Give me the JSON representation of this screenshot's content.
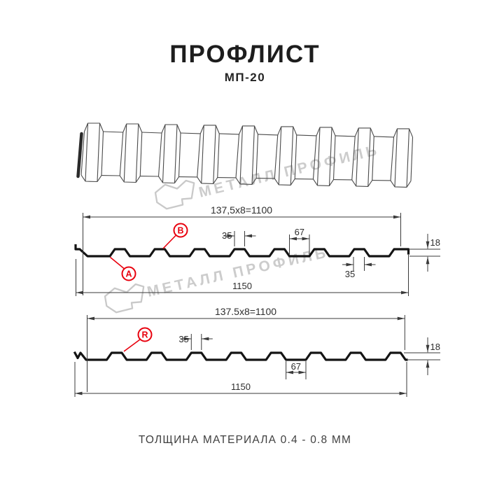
{
  "header": {
    "title": "ПРОФЛИСТ",
    "subtitle": "МП-20"
  },
  "watermark": {
    "text": "МЕТАЛЛ ПРОФИЛЬ",
    "logo_icon": "metal-profil-logo-icon",
    "color": "#cccccc"
  },
  "section1": {
    "dim_modular": "137,5x8=1100",
    "dim_rib_top_width": "35",
    "dim_valley_width": "67",
    "dim_height": "18",
    "dim_rib_bottom_width": "35",
    "dim_total_width": "1150",
    "label_a": "A",
    "label_b": "B"
  },
  "section2": {
    "dim_modular": "137.5x8=1100",
    "dim_rib_top_width": "35",
    "dim_valley_width": "67",
    "dim_height": "18",
    "dim_total_width": "1150",
    "label_r": "R"
  },
  "footer": {
    "text": "ТОЛЩИНА МАТЕРИАЛА 0.4 - 0.8 ММ"
  },
  "colors": {
    "accent_red": "#e8000d",
    "line": "#3a3a3a",
    "profile": "#141414",
    "watermark": "#cccccc",
    "text": "#1d1d1d",
    "background": "#ffffff"
  }
}
